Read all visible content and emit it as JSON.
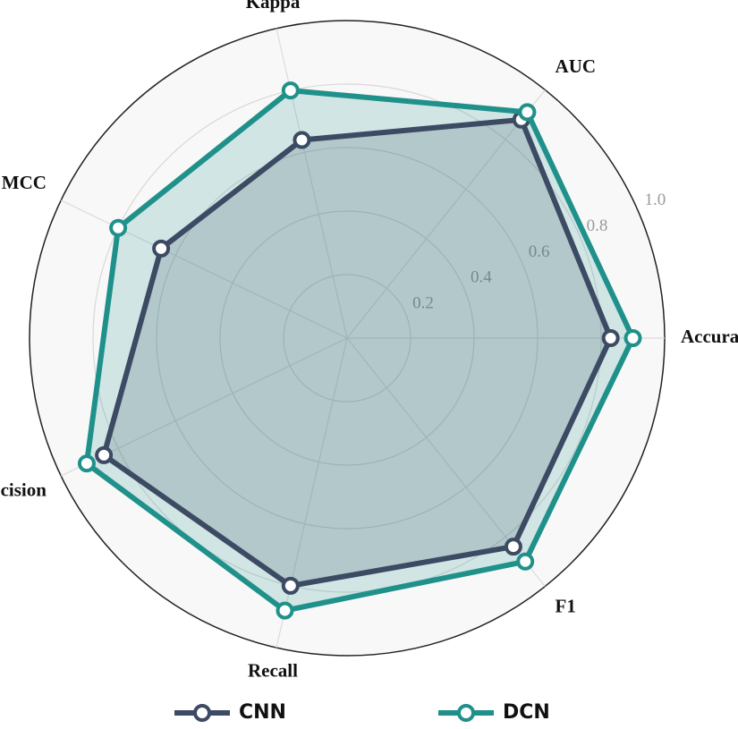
{
  "chart_data": {
    "type": "radar",
    "categories": [
      "Accuracy",
      "AUC",
      "Kappa",
      "MCC",
      "Precision",
      "Recall",
      "F1"
    ],
    "series": [
      {
        "name": "CNN",
        "color": "#3d4a63",
        "values": [
          0.83,
          0.88,
          0.64,
          0.65,
          0.85,
          0.8,
          0.84
        ]
      },
      {
        "name": "DCN",
        "color": "#1f918a",
        "values": [
          0.9,
          0.91,
          0.8,
          0.8,
          0.91,
          0.88,
          0.9
        ]
      }
    ],
    "ylim": [
      0,
      1
    ],
    "yticks": [
      0.2,
      0.4,
      0.6,
      0.8,
      {
        "value": 1,
        "label": "1.0"
      }
    ],
    "grid": true
  }
}
